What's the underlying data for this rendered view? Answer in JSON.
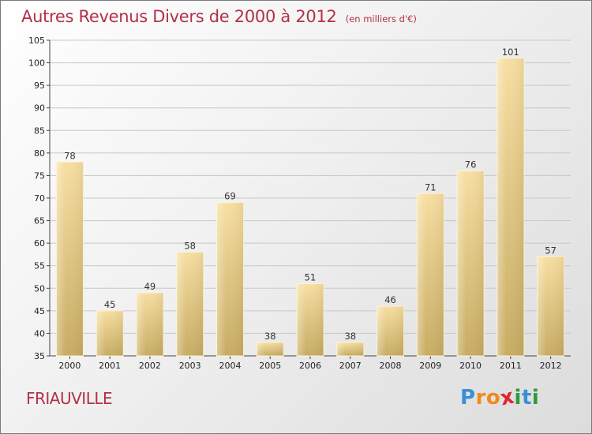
{
  "title": "Autres Revenus Divers de 2000 à 2012",
  "unit_note": "(en milliers d'€)",
  "town": "FRIAUVILLE",
  "logo": {
    "text": "Proxiti",
    "letters": [
      {
        "ch": "P",
        "color": "#3a8fd6"
      },
      {
        "ch": "r",
        "color": "#f08a1a"
      },
      {
        "ch": "o",
        "color": "#f08a1a"
      },
      {
        "ch": "x",
        "color": "#e0262d"
      },
      {
        "ch": "i",
        "color": "#2f9a3a"
      },
      {
        "ch": "t",
        "color": "#3a8fd6"
      },
      {
        "ch": "i",
        "color": "#2f9a3a"
      }
    ]
  },
  "colors": {
    "title": "#b2304a",
    "bar_top": "#f7dea1",
    "bar_bottom": "#c7ac63",
    "grid": "#c8c8c8"
  },
  "chart_data": {
    "type": "bar",
    "categories": [
      "2000",
      "2001",
      "2002",
      "2003",
      "2004",
      "2005",
      "2006",
      "2007",
      "2008",
      "2009",
      "2010",
      "2011",
      "2012"
    ],
    "values": [
      78,
      45,
      49,
      58,
      69,
      38,
      51,
      38,
      46,
      71,
      76,
      101,
      57
    ],
    "ylim": [
      35,
      105
    ],
    "yticks": [
      35,
      40,
      45,
      50,
      55,
      60,
      65,
      70,
      75,
      80,
      85,
      90,
      95,
      100,
      105
    ],
    "grid": true,
    "data_labels": true
  }
}
